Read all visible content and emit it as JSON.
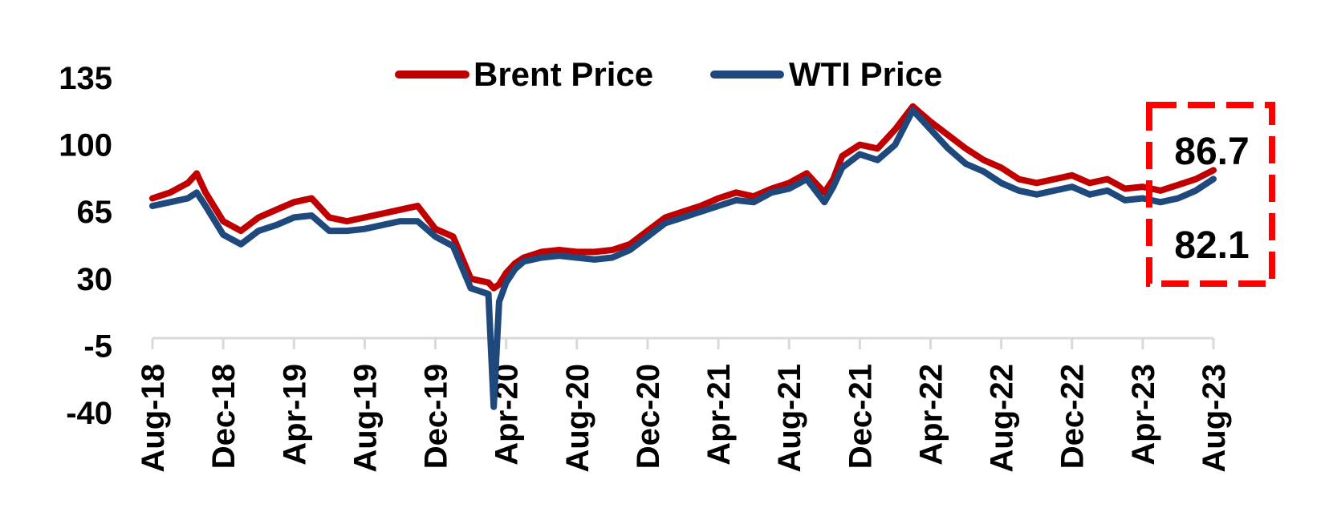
{
  "chart_data": {
    "type": "line",
    "title": "",
    "xlabel": "",
    "ylabel": "",
    "ylim": [
      -40,
      135
    ],
    "y_ticks": [
      "135",
      "100",
      "65",
      "30",
      "-5",
      "-40"
    ],
    "y_tick_values": [
      135,
      100,
      65,
      30,
      -5,
      -40
    ],
    "x_ticks": [
      "Aug-18",
      "Dec-18",
      "Apr-19",
      "Aug-19",
      "Dec-19",
      "Apr-20",
      "Aug-20",
      "Dec-20",
      "Apr-21",
      "Aug-21",
      "Dec-21",
      "Apr-22",
      "Aug-22",
      "Dec-22",
      "Apr-23",
      "Aug-23"
    ],
    "x_range_months": [
      0,
      60
    ],
    "grid": false,
    "legend_position": "top-center",
    "series": [
      {
        "name": "Brent Price",
        "color": "#C00000",
        "x": [
          0,
          1,
          2,
          2.5,
          3,
          4,
          5,
          6,
          7,
          8,
          9,
          10,
          11,
          12,
          13,
          14,
          15,
          16,
          17,
          18,
          19,
          19.3,
          19.6,
          20,
          20.5,
          21,
          22,
          23,
          24,
          25,
          26,
          27,
          28,
          29,
          30,
          31,
          32,
          33,
          34,
          35,
          36,
          37,
          38,
          38.5,
          39,
          40,
          41,
          42,
          43,
          44,
          45,
          46,
          47,
          48,
          49,
          50,
          51,
          52,
          53,
          54,
          55,
          56,
          57,
          58,
          59,
          60
        ],
        "y": [
          72,
          75,
          80,
          85,
          75,
          60,
          55,
          62,
          66,
          70,
          72,
          62,
          60,
          62,
          64,
          66,
          68,
          56,
          52,
          30,
          28,
          25,
          27,
          33,
          38,
          41,
          44,
          45,
          44,
          44,
          45,
          48,
          55,
          62,
          65,
          68,
          72,
          75,
          73,
          77,
          80,
          85,
          75,
          82,
          94,
          100,
          98,
          108,
          120,
          112,
          105,
          98,
          92,
          88,
          82,
          80,
          82,
          84,
          80,
          82,
          77,
          78,
          76,
          79,
          82,
          86.7
        ]
      },
      {
        "name": "WTI Price",
        "color": "#1F497D",
        "x": [
          0,
          1,
          2,
          2.5,
          3,
          4,
          5,
          6,
          7,
          8,
          9,
          10,
          11,
          12,
          13,
          14,
          15,
          16,
          17,
          18,
          19,
          19.3,
          19.6,
          20,
          20.5,
          21,
          22,
          23,
          24,
          25,
          26,
          27,
          28,
          29,
          30,
          31,
          32,
          33,
          34,
          35,
          36,
          37,
          38,
          38.5,
          39,
          40,
          41,
          42,
          43,
          44,
          45,
          46,
          47,
          48,
          49,
          50,
          51,
          52,
          53,
          54,
          55,
          56,
          57,
          58,
          59,
          60
        ],
        "y": [
          68,
          70,
          72,
          75,
          68,
          53,
          48,
          55,
          58,
          62,
          63,
          55,
          55,
          56,
          58,
          60,
          60,
          52,
          47,
          25,
          22,
          -37,
          18,
          28,
          35,
          39,
          41,
          42,
          41,
          40,
          41,
          45,
          52,
          59,
          62,
          65,
          68,
          71,
          70,
          75,
          77,
          82,
          70,
          78,
          88,
          95,
          92,
          100,
          118,
          108,
          98,
          90,
          86,
          80,
          76,
          74,
          76,
          78,
          74,
          76,
          71,
          72,
          70,
          72,
          76,
          82.1
        ]
      }
    ],
    "annotations": [
      "86.7",
      "82.1"
    ]
  }
}
